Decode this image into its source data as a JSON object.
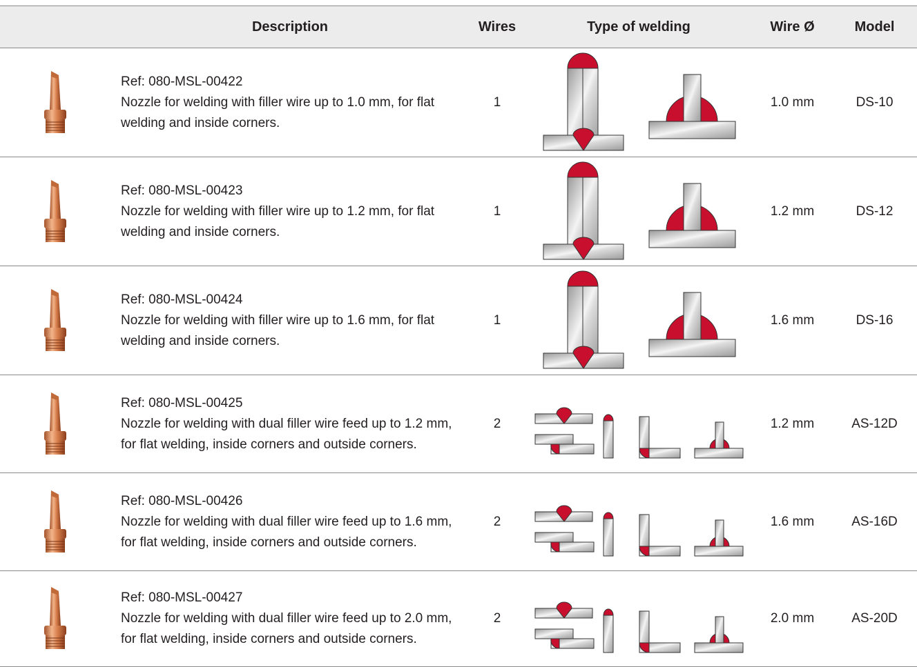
{
  "table": {
    "header": [
      "",
      "Description",
      "Wires",
      "Type of welding",
      "Wire Ø",
      "Model"
    ],
    "rows": [
      {
        "ref": "Ref: 080-MSL-00422",
        "description": "Nozzle for welding with filler wire up to 1.0 mm, for flat welding and inside corners.",
        "wires": "1",
        "wire_diameter": "1.0 mm",
        "model": "DS-10"
      },
      {
        "ref": "Ref: 080-MSL-00423",
        "description": "Nozzle for welding with filler wire up to 1.2 mm, for flat welding and inside corners.",
        "wires": "1",
        "wire_diameter": "1.2 mm",
        "model": "DS-12"
      },
      {
        "ref": "Ref: 080-MSL-00424",
        "description": "Nozzle for welding with filler wire up to 1.6 mm, for flat welding and inside corners.",
        "wires": "1",
        "wire_diameter": "1.6 mm",
        "model": "DS-16"
      },
      {
        "ref": "Ref: 080-MSL-00425",
        "description": "Nozzle for welding with dual filler wire feed up to 1.2 mm, for flat welding, inside corners and outside corners.",
        "wires": "2",
        "wire_diameter": "1.2 mm",
        "model": "AS-12D"
      },
      {
        "ref": "Ref: 080-MSL-00426",
        "description": "Nozzle for welding with dual filler wire feed up to 1.6 mm, for flat welding, inside corners and outside corners.",
        "wires": "2",
        "wire_diameter": "1.6 mm",
        "model": "AS-16D"
      },
      {
        "ref": "Ref: 080-MSL-00427",
        "description": "Nozzle for welding with dual filler wire feed up to 2.0 mm, for flat welding, inside corners and outside corners.",
        "wires": "2",
        "wire_diameter": "2.0 mm",
        "model": "AS-20D"
      }
    ]
  }
}
